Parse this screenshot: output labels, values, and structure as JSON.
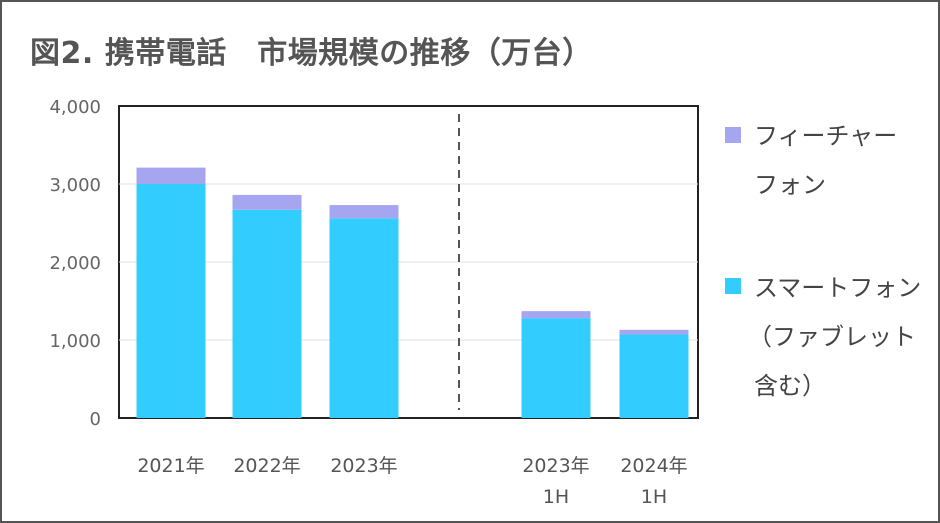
{
  "title": "図2. 携帯電話　市場規模の推移（万台）",
  "chart_data": {
    "type": "bar",
    "stacked": true,
    "title": "図2. 携帯電話　市場規模の推移（万台）",
    "categories": [
      [
        "2021年"
      ],
      [
        "2022年"
      ],
      [
        "2023年"
      ],
      [
        "2023年",
        "1H"
      ],
      [
        "2024年",
        "1H"
      ]
    ],
    "series": [
      {
        "name_lines": [
          "スマートフォン",
          "（ファブレット",
          "含む）"
        ],
        "color": "#33CCFF",
        "values": [
          3000,
          2670,
          2560,
          1280,
          1070
        ]
      },
      {
        "name_lines": [
          "フィーチャー",
          "フォン"
        ],
        "color": "#A6A6F0",
        "values": [
          210,
          190,
          170,
          90,
          60
        ]
      }
    ],
    "yticks": [
      "0",
      "1,000",
      "2,000",
      "3,000",
      "4,000"
    ],
    "ylim": [
      0,
      4000
    ],
    "grid": true,
    "legend": "right",
    "divider": "dashed line between 2023年 and 2023年 1H"
  }
}
